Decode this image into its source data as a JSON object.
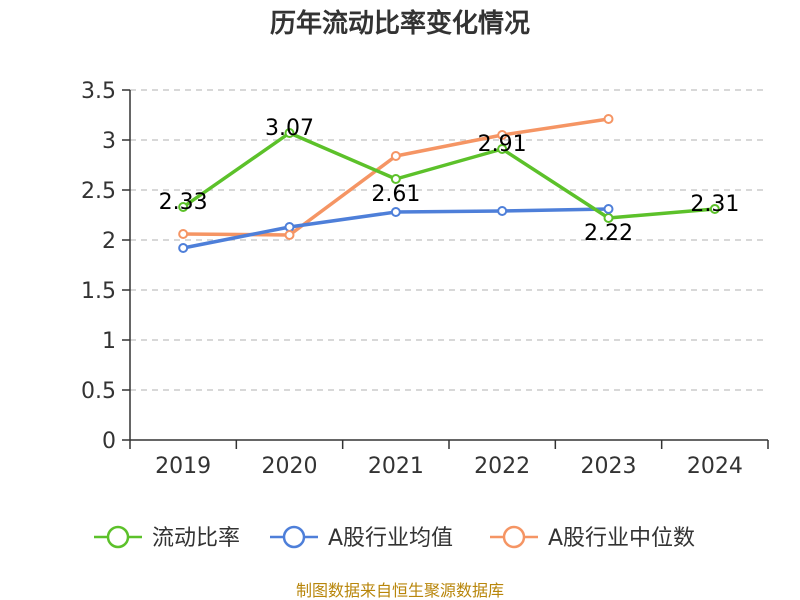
{
  "chart_data": {
    "type": "line",
    "title": "历年流动比率变化情况",
    "categories": [
      "2019",
      "2020",
      "2021",
      "2022",
      "2023",
      "2024"
    ],
    "ylim": [
      0,
      3.5
    ],
    "yticks": [
      "0",
      "0.5",
      "1",
      "1.5",
      "2",
      "2.5",
      "3",
      "3.5"
    ],
    "grid": true,
    "legend_position": "bottom",
    "series": [
      {
        "name": "流动比率",
        "color": "#5cc12a",
        "values": [
          2.33,
          3.07,
          2.61,
          2.91,
          2.22,
          2.31
        ],
        "labels": [
          "2.33",
          "3.07",
          "2.61",
          "2.91",
          "2.22",
          "2.31"
        ]
      },
      {
        "name": "A股行业均值",
        "color": "#4e7fd9",
        "values": [
          1.92,
          2.13,
          2.28,
          2.29,
          2.31,
          null
        ]
      },
      {
        "name": "A股行业中位数",
        "color": "#f59564",
        "values": [
          2.06,
          2.05,
          2.84,
          3.05,
          3.21,
          null
        ]
      }
    ],
    "source": "制图数据来自恒生聚源数据库"
  }
}
